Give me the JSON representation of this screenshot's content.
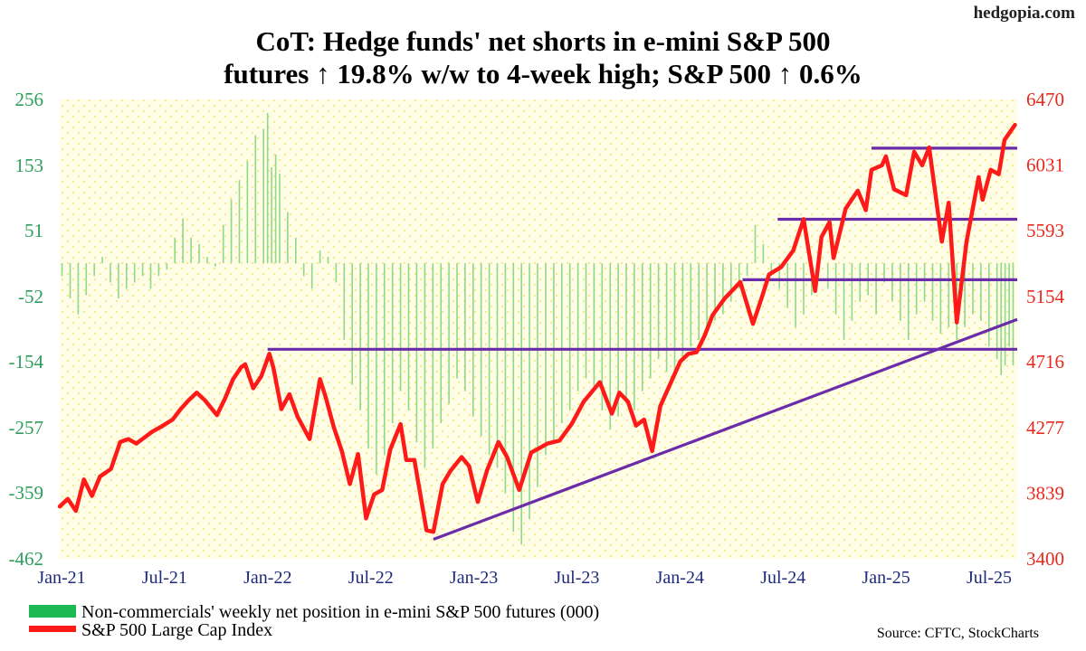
{
  "watermark": "hedgopia.com",
  "chart_data": {
    "type": "bar+line",
    "title_lines": [
      "CoT: Hedge funds' net shorts in e-mini S&P 500",
      "futures ↑ 19.8% w/w to 4-week high; S&P 500 ↑ 0.6%"
    ],
    "source": "Source: CFTC, StockCharts",
    "legend": [
      {
        "label": "Non-commercials' weekly net position in e-mini S&P 500 futures (000)",
        "color": "#1db954"
      },
      {
        "label": "S&P 500 Large Cap Index",
        "color": "#ff1a1a"
      }
    ],
    "x_ticks": [
      "Jan-21",
      "Jul-21",
      "Jan-22",
      "Jul-22",
      "Jan-23",
      "Jul-23",
      "Jan-24",
      "Jul-24",
      "Jan-25",
      "Jul-25"
    ],
    "left_axis": {
      "ticks": [
        256,
        153,
        51,
        -52,
        -154,
        -257,
        -359,
        -462
      ],
      "range": [
        -462,
        256
      ],
      "color": "#2e9e5b"
    },
    "right_axis": {
      "ticks": [
        6470,
        6031,
        5593,
        5154,
        4716,
        4277,
        3839,
        3400
      ],
      "range": [
        3400,
        6470
      ],
      "color": "#e8291c"
    },
    "x_range": [
      "2021-01-01",
      "2025-07-22"
    ],
    "background": {
      "fill": "#fffde6",
      "dot_color": "#f2ea86",
      "grid": false
    },
    "net_position_series": {
      "name": "Non-commercials' weekly net position in e-mini S&P 500 futures (000)",
      "color": "#8fd98a",
      "points": [
        [
          "2021-01-05",
          -20
        ],
        [
          "2021-01-19",
          -55
        ],
        [
          "2021-02-02",
          -80
        ],
        [
          "2021-02-16",
          -50
        ],
        [
          "2021-03-02",
          -20
        ],
        [
          "2021-03-16",
          10
        ],
        [
          "2021-03-30",
          -30
        ],
        [
          "2021-04-13",
          -55
        ],
        [
          "2021-04-27",
          -40
        ],
        [
          "2021-05-11",
          -30
        ],
        [
          "2021-05-25",
          -20
        ],
        [
          "2021-06-08",
          -40
        ],
        [
          "2021-06-22",
          -20
        ],
        [
          "2021-07-06",
          -10
        ],
        [
          "2021-07-20",
          40
        ],
        [
          "2021-08-03",
          70
        ],
        [
          "2021-08-17",
          40
        ],
        [
          "2021-08-31",
          30
        ],
        [
          "2021-09-14",
          10
        ],
        [
          "2021-09-28",
          -5
        ],
        [
          "2021-10-12",
          60
        ],
        [
          "2021-10-26",
          100
        ],
        [
          "2021-11-09",
          130
        ],
        [
          "2021-11-23",
          160
        ],
        [
          "2021-12-07",
          200
        ],
        [
          "2021-12-21",
          210
        ],
        [
          "2021-12-28",
          235
        ],
        [
          "2022-01-04",
          150
        ],
        [
          "2022-01-11",
          170
        ],
        [
          "2022-01-18",
          140
        ],
        [
          "2022-02-01",
          80
        ],
        [
          "2022-02-15",
          40
        ],
        [
          "2022-03-01",
          -20
        ],
        [
          "2022-03-15",
          -40
        ],
        [
          "2022-03-29",
          20
        ],
        [
          "2022-04-12",
          10
        ],
        [
          "2022-04-26",
          -30
        ],
        [
          "2022-05-10",
          -120
        ],
        [
          "2022-05-24",
          -190
        ],
        [
          "2022-06-07",
          -230
        ],
        [
          "2022-06-21",
          -290
        ],
        [
          "2022-07-05",
          -330
        ],
        [
          "2022-07-19",
          -300
        ],
        [
          "2022-08-02",
          -250
        ],
        [
          "2022-08-16",
          -200
        ],
        [
          "2022-08-30",
          -230
        ],
        [
          "2022-09-13",
          -280
        ],
        [
          "2022-09-27",
          -320
        ],
        [
          "2022-10-11",
          -290
        ],
        [
          "2022-10-25",
          -250
        ],
        [
          "2022-11-08",
          -220
        ],
        [
          "2022-11-22",
          -180
        ],
        [
          "2022-12-06",
          -200
        ],
        [
          "2022-12-20",
          -240
        ],
        [
          "2023-01-03",
          -270
        ],
        [
          "2023-01-17",
          -300
        ],
        [
          "2023-01-31",
          -320
        ],
        [
          "2023-02-14",
          -360
        ],
        [
          "2023-02-28",
          -420
        ],
        [
          "2023-03-14",
          -440
        ],
        [
          "2023-03-28",
          -400
        ],
        [
          "2023-04-11",
          -350
        ],
        [
          "2023-04-25",
          -300
        ],
        [
          "2023-05-09",
          -280
        ],
        [
          "2023-05-23",
          -250
        ],
        [
          "2023-06-06",
          -230
        ],
        [
          "2023-06-20",
          -200
        ],
        [
          "2023-07-04",
          -180
        ],
        [
          "2023-07-18",
          -200
        ],
        [
          "2023-08-01",
          -230
        ],
        [
          "2023-08-15",
          -260
        ],
        [
          "2023-08-29",
          -240
        ],
        [
          "2023-09-12",
          -220
        ],
        [
          "2023-09-26",
          -230
        ],
        [
          "2023-10-10",
          -200
        ],
        [
          "2023-10-24",
          -180
        ],
        [
          "2023-11-07",
          -150
        ],
        [
          "2023-11-21",
          -170
        ],
        [
          "2023-12-05",
          -180
        ],
        [
          "2023-12-19",
          -150
        ],
        [
          "2024-01-02",
          -130
        ],
        [
          "2024-01-16",
          -120
        ],
        [
          "2024-01-30",
          -100
        ],
        [
          "2024-02-13",
          -90
        ],
        [
          "2024-02-27",
          -80
        ],
        [
          "2024-03-12",
          -60
        ],
        [
          "2024-03-26",
          -40
        ],
        [
          "2024-04-09",
          -20
        ],
        [
          "2024-04-23",
          60
        ],
        [
          "2024-05-07",
          30
        ],
        [
          "2024-05-21",
          -20
        ],
        [
          "2024-06-04",
          -40
        ],
        [
          "2024-06-18",
          -70
        ],
        [
          "2024-07-02",
          -100
        ],
        [
          "2024-07-16",
          -80
        ],
        [
          "2024-07-30",
          -50
        ],
        [
          "2024-08-13",
          10
        ],
        [
          "2024-08-27",
          -40
        ],
        [
          "2024-09-10",
          -80
        ],
        [
          "2024-09-24",
          -120
        ],
        [
          "2024-10-08",
          -90
        ],
        [
          "2024-10-22",
          -60
        ],
        [
          "2024-11-05",
          -50
        ],
        [
          "2024-11-19",
          -80
        ],
        [
          "2024-12-03",
          -30
        ],
        [
          "2024-12-17",
          -60
        ],
        [
          "2024-12-31",
          -90
        ],
        [
          "2025-01-14",
          -120
        ],
        [
          "2025-01-28",
          -80
        ],
        [
          "2025-02-11",
          -60
        ],
        [
          "2025-02-25",
          -90
        ],
        [
          "2025-03-11",
          -110
        ],
        [
          "2025-03-25",
          -100
        ],
        [
          "2025-04-08",
          -120
        ],
        [
          "2025-04-22",
          -100
        ],
        [
          "2025-05-06",
          -80
        ],
        [
          "2025-05-20",
          -90
        ],
        [
          "2025-06-03",
          -130
        ],
        [
          "2025-06-17",
          -150
        ],
        [
          "2025-06-24",
          -175
        ],
        [
          "2025-07-01",
          -160
        ],
        [
          "2025-07-08",
          -130
        ],
        [
          "2025-07-15",
          -160
        ]
      ]
    },
    "sp500_series": {
      "name": "S&P 500 Large Cap Index",
      "color": "#ff1a1a",
      "points": [
        [
          "2021-01-01",
          3750
        ],
        [
          "2021-01-15",
          3800
        ],
        [
          "2021-01-29",
          3720
        ],
        [
          "2021-02-12",
          3930
        ],
        [
          "2021-02-26",
          3820
        ],
        [
          "2021-03-12",
          3950
        ],
        [
          "2021-03-31",
          4000
        ],
        [
          "2021-04-16",
          4180
        ],
        [
          "2021-04-30",
          4200
        ],
        [
          "2021-05-14",
          4170
        ],
        [
          "2021-05-28",
          4210
        ],
        [
          "2021-06-11",
          4250
        ],
        [
          "2021-06-25",
          4280
        ],
        [
          "2021-07-16",
          4330
        ],
        [
          "2021-07-30",
          4400
        ],
        [
          "2021-08-13",
          4460
        ],
        [
          "2021-08-27",
          4510
        ],
        [
          "2021-09-10",
          4460
        ],
        [
          "2021-10-01",
          4360
        ],
        [
          "2021-10-15",
          4470
        ],
        [
          "2021-10-29",
          4600
        ],
        [
          "2021-11-12",
          4680
        ],
        [
          "2021-11-19",
          4700
        ],
        [
          "2021-12-03",
          4540
        ],
        [
          "2021-12-17",
          4620
        ],
        [
          "2021-12-31",
          4770
        ],
        [
          "2022-01-07",
          4680
        ],
        [
          "2022-01-21",
          4400
        ],
        [
          "2022-02-04",
          4500
        ],
        [
          "2022-02-18",
          4350
        ],
        [
          "2022-03-11",
          4200
        ],
        [
          "2022-03-29",
          4600
        ],
        [
          "2022-04-08",
          4480
        ],
        [
          "2022-04-22",
          4280
        ],
        [
          "2022-05-06",
          4120
        ],
        [
          "2022-05-20",
          3900
        ],
        [
          "2022-06-03",
          4100
        ],
        [
          "2022-06-17",
          3670
        ],
        [
          "2022-07-01",
          3830
        ],
        [
          "2022-07-15",
          3860
        ],
        [
          "2022-07-29",
          4130
        ],
        [
          "2022-08-16",
          4300
        ],
        [
          "2022-08-26",
          4060
        ],
        [
          "2022-09-09",
          4060
        ],
        [
          "2022-09-30",
          3590
        ],
        [
          "2022-10-12",
          3580
        ],
        [
          "2022-10-28",
          3900
        ],
        [
          "2022-11-11",
          3990
        ],
        [
          "2022-11-30",
          4080
        ],
        [
          "2022-12-13",
          4020
        ],
        [
          "2022-12-28",
          3780
        ],
        [
          "2023-01-13",
          3990
        ],
        [
          "2023-02-02",
          4180
        ],
        [
          "2023-02-17",
          4080
        ],
        [
          "2023-03-10",
          3860
        ],
        [
          "2023-03-31",
          4110
        ],
        [
          "2023-04-14",
          4140
        ],
        [
          "2023-04-28",
          4170
        ],
        [
          "2023-05-19",
          4190
        ],
        [
          "2023-06-09",
          4300
        ],
        [
          "2023-06-30",
          4450
        ],
        [
          "2023-07-28",
          4580
        ],
        [
          "2023-08-18",
          4370
        ],
        [
          "2023-08-31",
          4510
        ],
        [
          "2023-09-15",
          4450
        ],
        [
          "2023-09-29",
          4290
        ],
        [
          "2023-10-13",
          4330
        ],
        [
          "2023-10-27",
          4120
        ],
        [
          "2023-11-10",
          4420
        ],
        [
          "2023-12-01",
          4600
        ],
        [
          "2023-12-15",
          4720
        ],
        [
          "2023-12-29",
          4770
        ],
        [
          "2024-01-12",
          4780
        ],
        [
          "2024-01-26",
          4890
        ],
        [
          "2024-02-09",
          5030
        ],
        [
          "2024-03-01",
          5140
        ],
        [
          "2024-03-28",
          5250
        ],
        [
          "2024-04-19",
          4970
        ],
        [
          "2024-05-03",
          5130
        ],
        [
          "2024-05-17",
          5300
        ],
        [
          "2024-06-07",
          5350
        ],
        [
          "2024-06-28",
          5460
        ],
        [
          "2024-07-16",
          5670
        ],
        [
          "2024-08-05",
          5190
        ],
        [
          "2024-08-16",
          5550
        ],
        [
          "2024-08-30",
          5650
        ],
        [
          "2024-09-06",
          5410
        ],
        [
          "2024-09-27",
          5740
        ],
        [
          "2024-10-18",
          5860
        ],
        [
          "2024-11-01",
          5730
        ],
        [
          "2024-11-11",
          6000
        ],
        [
          "2024-11-29",
          6030
        ],
        [
          "2024-12-06",
          6090
        ],
        [
          "2024-12-20",
          5870
        ],
        [
          "2025-01-10",
          5830
        ],
        [
          "2025-01-24",
          6120
        ],
        [
          "2025-02-07",
          6030
        ],
        [
          "2025-02-19",
          6150
        ],
        [
          "2025-03-13",
          5520
        ],
        [
          "2025-03-25",
          5780
        ],
        [
          "2025-04-08",
          4980
        ],
        [
          "2025-04-25",
          5520
        ],
        [
          "2025-05-16",
          5950
        ],
        [
          "2025-05-23",
          5800
        ],
        [
          "2025-06-06",
          6000
        ],
        [
          "2025-06-20",
          5970
        ],
        [
          "2025-06-30",
          6200
        ],
        [
          "2025-07-11",
          6260
        ],
        [
          "2025-07-18",
          6300
        ]
      ]
    },
    "reference_lines": [
      {
        "kind": "horizontal",
        "from": "2021-12-28",
        "to": "2025-07-22",
        "value": 4800,
        "color": "#6a2ca8"
      },
      {
        "kind": "horizontal",
        "from": "2024-04-01",
        "to": "2025-07-22",
        "value": 5265,
        "color": "#6a2ca8"
      },
      {
        "kind": "horizontal",
        "from": "2024-06-01",
        "to": "2025-07-22",
        "value": 5669,
        "color": "#6a2ca8"
      },
      {
        "kind": "horizontal",
        "from": "2024-11-11",
        "to": "2025-07-22",
        "value": 6144,
        "color": "#6a2ca8"
      },
      {
        "kind": "trend",
        "from": "2022-10-12",
        "to": "2025-07-22",
        "start_value": 3530,
        "end_value": 5000,
        "color": "#6a2ca8"
      }
    ]
  }
}
